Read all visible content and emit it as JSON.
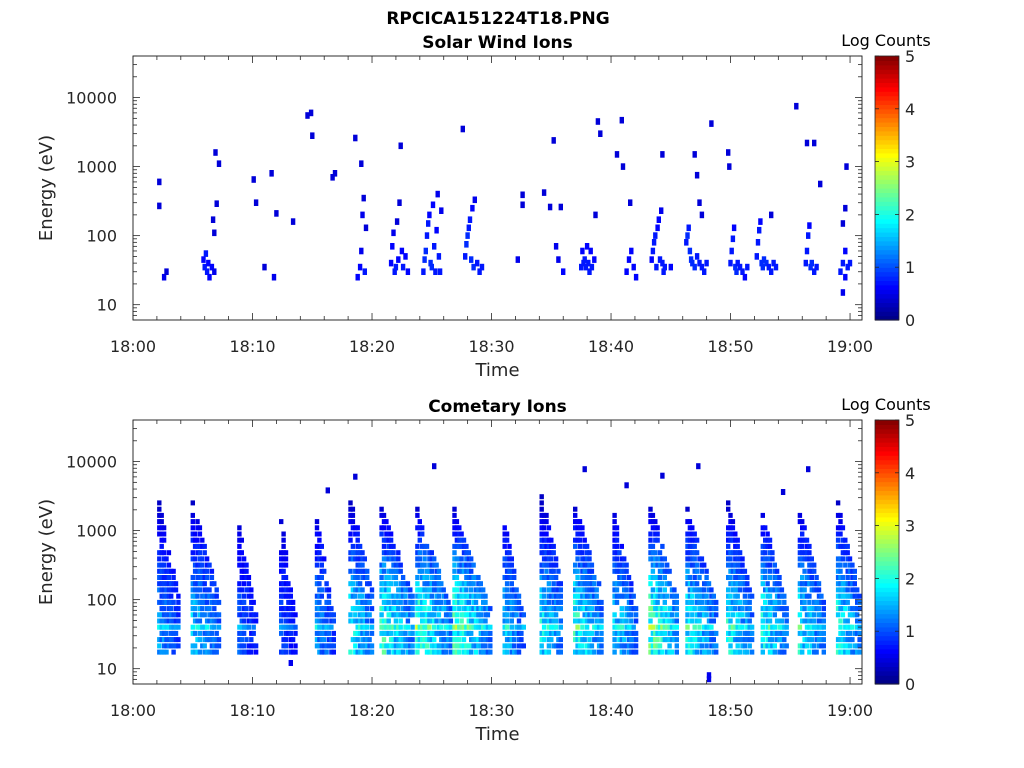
{
  "figure": {
    "title": "RPCICA151224T18.PNG"
  },
  "chart_data": [
    {
      "type": "heatmap",
      "title": "Solar Wind Ions",
      "xlabel": "Time",
      "ylabel": "Energy (eV)",
      "x_ticks": [
        "18:00",
        "18:10",
        "18:20",
        "18:30",
        "18:40",
        "18:50",
        "19:00"
      ],
      "x_range_min": [
        0,
        61
      ],
      "y_scale": "log",
      "y_range": [
        6,
        40000
      ],
      "y_ticks": [
        {
          "label": "10",
          "value": 10
        },
        {
          "label": "100",
          "value": 100
        },
        {
          "label": "1000",
          "value": 1000
        },
        {
          "label": "10000",
          "value": 10000
        }
      ],
      "colorbar": {
        "label": "Log Counts",
        "range": [
          0,
          5
        ],
        "ticks": [
          "0",
          "1",
          "2",
          "3",
          "4",
          "5"
        ],
        "colormap": "jet"
      },
      "data_note": "values = [time_minutes_after_18:00, energy_eV, log_counts]",
      "values": [
        [
          2.2,
          270,
          0.3
        ],
        [
          2.2,
          600,
          0.3
        ],
        [
          2.6,
          25,
          0.4
        ],
        [
          2.8,
          30,
          0.3
        ],
        [
          5.9,
          45,
          0.5
        ],
        [
          6.0,
          35,
          0.6
        ],
        [
          6.1,
          55,
          0.6
        ],
        [
          6.2,
          30,
          0.6
        ],
        [
          6.3,
          40,
          0.5
        ],
        [
          6.4,
          25,
          0.5
        ],
        [
          6.6,
          35,
          0.5
        ],
        [
          6.8,
          30,
          0.4
        ],
        [
          6.7,
          170,
          0.3
        ],
        [
          6.8,
          110,
          0.3
        ],
        [
          6.9,
          1600,
          0.3
        ],
        [
          7.0,
          290,
          0.3
        ],
        [
          7.2,
          1100,
          0.3
        ],
        [
          10.1,
          650,
          0.3
        ],
        [
          10.3,
          300,
          0.3
        ],
        [
          11.0,
          35,
          0.3
        ],
        [
          11.6,
          800,
          0.3
        ],
        [
          12.0,
          210,
          0.3
        ],
        [
          11.8,
          25,
          0.4
        ],
        [
          13.4,
          160,
          0.3
        ],
        [
          14.6,
          5500,
          0.3
        ],
        [
          14.9,
          6000,
          0.3
        ],
        [
          15.0,
          2800,
          0.3
        ],
        [
          16.7,
          700,
          0.3
        ],
        [
          16.9,
          800,
          0.3
        ],
        [
          18.6,
          2600,
          0.3
        ],
        [
          18.8,
          25,
          0.5
        ],
        [
          19.0,
          35,
          0.5
        ],
        [
          19.1,
          60,
          0.4
        ],
        [
          19.2,
          200,
          0.4
        ],
        [
          19.3,
          350,
          0.3
        ],
        [
          19.4,
          30,
          0.6
        ],
        [
          19.5,
          130,
          0.3
        ],
        [
          19.1,
          1100,
          0.3
        ],
        [
          21.6,
          40,
          0.5
        ],
        [
          21.7,
          70,
          0.5
        ],
        [
          21.8,
          110,
          0.4
        ],
        [
          21.9,
          30,
          0.6
        ],
        [
          22.0,
          35,
          0.6
        ],
        [
          22.1,
          160,
          0.3
        ],
        [
          22.2,
          45,
          0.5
        ],
        [
          22.3,
          300,
          0.3
        ],
        [
          22.4,
          2000,
          0.3
        ],
        [
          22.5,
          60,
          0.5
        ],
        [
          22.6,
          35,
          0.6
        ],
        [
          22.8,
          50,
          0.5
        ],
        [
          23.0,
          30,
          0.5
        ],
        [
          24.3,
          30,
          0.6
        ],
        [
          24.4,
          45,
          0.7
        ],
        [
          24.5,
          60,
          0.7
        ],
        [
          24.6,
          100,
          0.6
        ],
        [
          24.7,
          150,
          0.6
        ],
        [
          24.8,
          200,
          0.5
        ],
        [
          24.9,
          40,
          0.7
        ],
        [
          25.0,
          35,
          0.7
        ],
        [
          25.1,
          280,
          0.5
        ],
        [
          25.2,
          70,
          0.6
        ],
        [
          25.3,
          30,
          0.6
        ],
        [
          25.4,
          120,
          0.5
        ],
        [
          25.5,
          400,
          0.4
        ],
        [
          25.6,
          50,
          0.6
        ],
        [
          25.7,
          30,
          0.6
        ],
        [
          25.8,
          230,
          0.4
        ],
        [
          27.6,
          3500,
          0.3
        ],
        [
          27.8,
          50,
          0.6
        ],
        [
          27.9,
          75,
          0.7
        ],
        [
          28.0,
          100,
          0.7
        ],
        [
          28.1,
          130,
          0.6
        ],
        [
          28.2,
          170,
          0.6
        ],
        [
          28.3,
          45,
          0.7
        ],
        [
          28.4,
          250,
          0.5
        ],
        [
          28.5,
          35,
          0.7
        ],
        [
          28.6,
          330,
          0.4
        ],
        [
          28.8,
          40,
          0.6
        ],
        [
          29.0,
          30,
          0.6
        ],
        [
          29.2,
          35,
          0.6
        ],
        [
          32.2,
          45,
          0.4
        ],
        [
          32.6,
          280,
          0.3
        ],
        [
          32.6,
          390,
          0.3
        ],
        [
          34.4,
          420,
          0.3
        ],
        [
          34.9,
          260,
          0.3
        ],
        [
          35.2,
          2400,
          0.3
        ],
        [
          35.8,
          260,
          0.3
        ],
        [
          35.4,
          70,
          0.4
        ],
        [
          35.6,
          45,
          0.4
        ],
        [
          36.0,
          30,
          0.5
        ],
        [
          37.5,
          35,
          0.6
        ],
        [
          37.6,
          60,
          0.5
        ],
        [
          37.7,
          40,
          0.6
        ],
        [
          37.8,
          45,
          0.6
        ],
        [
          37.9,
          35,
          0.6
        ],
        [
          38.0,
          70,
          0.5
        ],
        [
          38.1,
          40,
          0.6
        ],
        [
          38.2,
          30,
          0.6
        ],
        [
          38.3,
          60,
          0.5
        ],
        [
          38.4,
          35,
          0.6
        ],
        [
          38.6,
          45,
          0.5
        ],
        [
          38.7,
          200,
          0.3
        ],
        [
          38.9,
          4500,
          0.3
        ],
        [
          39.1,
          3000,
          0.3
        ],
        [
          40.5,
          1500,
          0.3
        ],
        [
          40.9,
          4700,
          0.3
        ],
        [
          41.0,
          1000,
          0.3
        ],
        [
          41.6,
          300,
          0.3
        ],
        [
          41.3,
          30,
          0.5
        ],
        [
          41.5,
          45,
          0.5
        ],
        [
          41.7,
          60,
          0.5
        ],
        [
          41.9,
          35,
          0.5
        ],
        [
          42.1,
          25,
          0.5
        ],
        [
          43.4,
          45,
          0.5
        ],
        [
          43.5,
          60,
          0.6
        ],
        [
          43.6,
          80,
          0.6
        ],
        [
          43.7,
          100,
          0.6
        ],
        [
          43.8,
          35,
          0.6
        ],
        [
          43.9,
          130,
          0.5
        ],
        [
          44.0,
          170,
          0.5
        ],
        [
          44.1,
          45,
          0.6
        ],
        [
          44.2,
          230,
          0.4
        ],
        [
          44.3,
          40,
          0.6
        ],
        [
          44.4,
          30,
          0.6
        ],
        [
          44.5,
          35,
          0.6
        ],
        [
          44.3,
          1500,
          0.3
        ],
        [
          45.0,
          35,
          0.5
        ],
        [
          46.3,
          80,
          0.6
        ],
        [
          46.4,
          100,
          0.7
        ],
        [
          46.5,
          130,
          0.6
        ],
        [
          46.6,
          60,
          0.7
        ],
        [
          46.7,
          45,
          0.7
        ],
        [
          46.8,
          40,
          0.7
        ],
        [
          47.0,
          35,
          0.7
        ],
        [
          47.2,
          50,
          0.6
        ],
        [
          47.4,
          40,
          0.6
        ],
        [
          47.6,
          35,
          0.6
        ],
        [
          47.8,
          30,
          0.6
        ],
        [
          48.0,
          40,
          0.6
        ],
        [
          47.0,
          1500,
          0.3
        ],
        [
          47.2,
          750,
          0.3
        ],
        [
          47.4,
          300,
          0.3
        ],
        [
          47.6,
          200,
          0.3
        ],
        [
          48.4,
          4200,
          0.3
        ],
        [
          49.8,
          1600,
          0.3
        ],
        [
          49.9,
          1000,
          0.3
        ],
        [
          50.0,
          40,
          0.6
        ],
        [
          50.1,
          60,
          0.6
        ],
        [
          50.2,
          90,
          0.6
        ],
        [
          50.3,
          130,
          0.5
        ],
        [
          50.4,
          35,
          0.7
        ],
        [
          50.5,
          30,
          0.7
        ],
        [
          50.6,
          40,
          0.6
        ],
        [
          50.8,
          35,
          0.6
        ],
        [
          51.0,
          30,
          0.6
        ],
        [
          51.2,
          25,
          0.5
        ],
        [
          51.4,
          35,
          0.6
        ],
        [
          52.2,
          50,
          0.6
        ],
        [
          52.3,
          80,
          0.6
        ],
        [
          52.4,
          120,
          0.6
        ],
        [
          52.5,
          160,
          0.5
        ],
        [
          52.6,
          40,
          0.7
        ],
        [
          52.7,
          35,
          0.7
        ],
        [
          52.8,
          45,
          0.7
        ],
        [
          53.0,
          40,
          0.7
        ],
        [
          53.2,
          35,
          0.6
        ],
        [
          53.4,
          30,
          0.6
        ],
        [
          53.6,
          40,
          0.6
        ],
        [
          53.8,
          35,
          0.6
        ],
        [
          53.4,
          200,
          0.3
        ],
        [
          55.5,
          7500,
          0.3
        ],
        [
          56.4,
          2200,
          0.3
        ],
        [
          57.0,
          2200,
          0.3
        ],
        [
          57.5,
          560,
          0.3
        ],
        [
          56.3,
          40,
          0.6
        ],
        [
          56.4,
          60,
          0.6
        ],
        [
          56.5,
          100,
          0.6
        ],
        [
          56.6,
          140,
          0.5
        ],
        [
          56.7,
          35,
          0.7
        ],
        [
          56.8,
          40,
          0.7
        ],
        [
          57.0,
          30,
          0.6
        ],
        [
          57.2,
          35,
          0.6
        ],
        [
          59.2,
          30,
          0.6
        ],
        [
          59.4,
          40,
          0.6
        ],
        [
          59.6,
          60,
          0.5
        ],
        [
          59.8,
          35,
          0.6
        ],
        [
          60.0,
          40,
          0.6
        ],
        [
          59.4,
          15,
          0.4
        ],
        [
          59.6,
          25,
          0.5
        ],
        [
          59.4,
          150,
          0.3
        ],
        [
          59.6,
          250,
          0.3
        ],
        [
          59.7,
          1000,
          0.3
        ]
      ]
    },
    {
      "type": "heatmap",
      "title": "Cometary Ions",
      "xlabel": "Time",
      "ylabel": "Energy (eV)",
      "x_ticks": [
        "18:00",
        "18:10",
        "18:20",
        "18:30",
        "18:40",
        "18:50",
        "19:00"
      ],
      "x_range_min": [
        0,
        61
      ],
      "y_scale": "log",
      "y_range": [
        6,
        40000
      ],
      "y_ticks": [
        {
          "label": "10",
          "value": 10
        },
        {
          "label": "100",
          "value": 100
        },
        {
          "label": "1000",
          "value": 1000
        },
        {
          "label": "10000",
          "value": 10000
        }
      ],
      "colorbar": {
        "label": "Log Counts",
        "range": [
          0,
          5
        ],
        "ticks": [
          "0",
          "1",
          "2",
          "3",
          "4",
          "5"
        ],
        "colormap": "jet"
      },
      "data_note": "bursts = [start_minute, end_minute, max_energy_eV, peak_log_counts]; additional_points = [time_minutes_after_18:00, energy_eV, log_counts]",
      "bursts": [
        [
          2.2,
          3.9,
          2500,
          1.3
        ],
        [
          5.0,
          7.3,
          2500,
          1.6
        ],
        [
          8.9,
          10.4,
          1200,
          0.9
        ],
        [
          12.4,
          13.6,
          1500,
          0.8
        ],
        [
          15.4,
          16.9,
          1400,
          1.3
        ],
        [
          18.2,
          20.1,
          3000,
          2.0
        ],
        [
          20.8,
          23.5,
          2500,
          2.2
        ],
        [
          23.8,
          26.6,
          2000,
          2.3
        ],
        [
          26.9,
          29.9,
          2000,
          2.3
        ],
        [
          31.1,
          32.8,
          1300,
          1.6
        ],
        [
          34.2,
          36.0,
          3500,
          1.9
        ],
        [
          37.0,
          39.4,
          2500,
          2.1
        ],
        [
          40.3,
          42.2,
          1800,
          1.7
        ],
        [
          43.3,
          45.6,
          2500,
          2.5
        ],
        [
          46.4,
          48.9,
          2000,
          2.0
        ],
        [
          49.8,
          51.9,
          2500,
          2.0
        ],
        [
          52.7,
          54.8,
          1800,
          2.0
        ],
        [
          55.8,
          57.9,
          2000,
          1.9
        ],
        [
          59.0,
          61.0,
          2500,
          2.0
        ]
      ],
      "additional_points": [
        [
          25.2,
          8500,
          0.3
        ],
        [
          37.8,
          7700,
          0.3
        ],
        [
          41.3,
          4500,
          0.3
        ],
        [
          44.3,
          6200,
          0.3
        ],
        [
          47.3,
          8500,
          0.3
        ],
        [
          56.5,
          7700,
          0.3
        ],
        [
          54.4,
          3600,
          0.3
        ],
        [
          18.6,
          6000,
          0.3
        ],
        [
          16.3,
          3800,
          0.3
        ],
        [
          13.2,
          12,
          0.4
        ],
        [
          48.2,
          7,
          0.4
        ],
        [
          48.2,
          8,
          0.4
        ]
      ]
    }
  ]
}
